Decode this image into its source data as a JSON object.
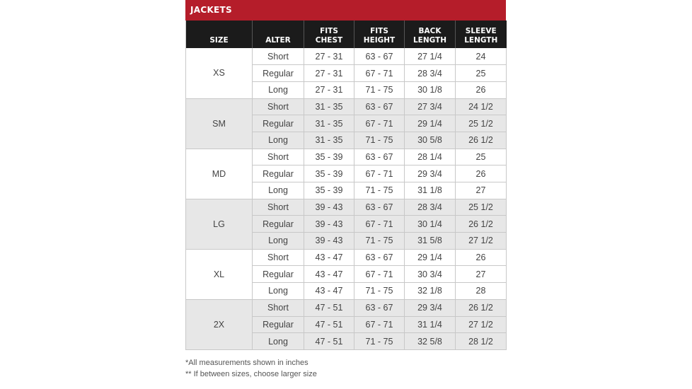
{
  "title": "JACKETS",
  "headers": {
    "size": "SIZE",
    "alter": "ALTER",
    "chest_line1": "FITS",
    "chest_line2": "CHEST",
    "height_line1": "FITS",
    "height_line2": "HEIGHT",
    "back_line1": "BACK",
    "back_line2": "LENGTH",
    "sleeve_line1": "SLEEVE",
    "sleeve_line2": "LENGTH"
  },
  "groups": [
    {
      "size": "XS",
      "rows": [
        {
          "alter": "Short",
          "chest": "27 - 31",
          "height": "63 - 67",
          "back": "27 1/4",
          "sleeve": "24"
        },
        {
          "alter": "Regular",
          "chest": "27 - 31",
          "height": "67 - 71",
          "back": "28 3/4",
          "sleeve": "25"
        },
        {
          "alter": "Long",
          "chest": "27 - 31",
          "height": "71 - 75",
          "back": "30 1/8",
          "sleeve": "26"
        }
      ]
    },
    {
      "size": "SM",
      "rows": [
        {
          "alter": "Short",
          "chest": "31 - 35",
          "height": "63 - 67",
          "back": "27 3/4",
          "sleeve": "24 1/2"
        },
        {
          "alter": "Regular",
          "chest": "31 - 35",
          "height": "67 - 71",
          "back": "29 1/4",
          "sleeve": "25 1/2"
        },
        {
          "alter": "Long",
          "chest": "31 - 35",
          "height": "71 - 75",
          "back": "30 5/8",
          "sleeve": "26 1/2"
        }
      ]
    },
    {
      "size": "MD",
      "rows": [
        {
          "alter": "Short",
          "chest": "35 - 39",
          "height": "63 - 67",
          "back": "28 1/4",
          "sleeve": "25"
        },
        {
          "alter": "Regular",
          "chest": "35 - 39",
          "height": "67 - 71",
          "back": "29 3/4",
          "sleeve": "26"
        },
        {
          "alter": "Long",
          "chest": "35 - 39",
          "height": "71 - 75",
          "back": "31 1/8",
          "sleeve": "27"
        }
      ]
    },
    {
      "size": "LG",
      "rows": [
        {
          "alter": "Short",
          "chest": "39 - 43",
          "height": "63 - 67",
          "back": "28 3/4",
          "sleeve": "25 1/2"
        },
        {
          "alter": "Regular",
          "chest": "39 - 43",
          "height": "67 - 71",
          "back": "30 1/4",
          "sleeve": "26 1/2"
        },
        {
          "alter": "Long",
          "chest": "39 - 43",
          "height": "71 - 75",
          "back": "31 5/8",
          "sleeve": "27 1/2"
        }
      ]
    },
    {
      "size": "XL",
      "rows": [
        {
          "alter": "Short",
          "chest": "43 - 47",
          "height": "63 - 67",
          "back": "29 1/4",
          "sleeve": "26"
        },
        {
          "alter": "Regular",
          "chest": "43 - 47",
          "height": "67 - 71",
          "back": "30 3/4",
          "sleeve": "27"
        },
        {
          "alter": "Long",
          "chest": "43 - 47",
          "height": "71 - 75",
          "back": "32 1/8",
          "sleeve": "28"
        }
      ]
    },
    {
      "size": "2X",
      "rows": [
        {
          "alter": "Short",
          "chest": "47 - 51",
          "height": "63 - 67",
          "back": "29 3/4",
          "sleeve": "26 1/2"
        },
        {
          "alter": "Regular",
          "chest": "47 - 51",
          "height": "67 - 71",
          "back": "31 1/4",
          "sleeve": "27 1/2"
        },
        {
          "alter": "Long",
          "chest": "47 - 51",
          "height": "71 - 75",
          "back": "32 5/8",
          "sleeve": "28 1/2"
        }
      ]
    }
  ],
  "notes": [
    "*All measurements shown in inches",
    "** If between sizes, choose larger size"
  ],
  "colors": {
    "title_bar": "#b51d2a",
    "header_bg": "#1b1b1b",
    "shaded_group": "#e7e7e7",
    "grid": "#c8c8c8"
  }
}
